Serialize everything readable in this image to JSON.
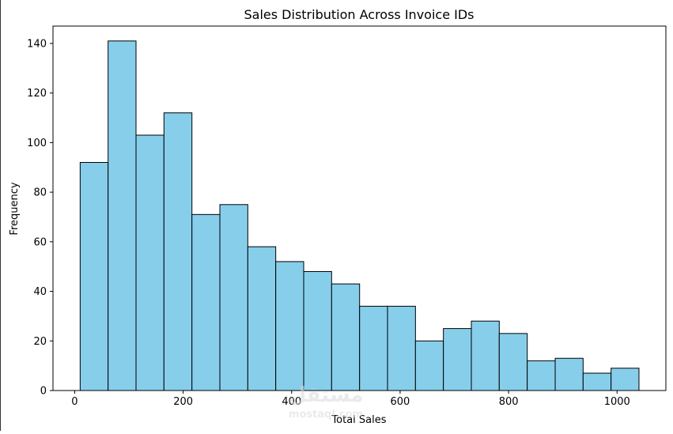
{
  "chart_data": {
    "type": "bar",
    "title": "Sales Distribution Across Invoice IDs",
    "xlabel": "Total Sales",
    "ylabel": "Frequency",
    "xlim": [
      -40,
      1090
    ],
    "ylim": [
      0,
      147
    ],
    "x_ticks": [
      0,
      200,
      400,
      600,
      800,
      1000
    ],
    "y_ticks": [
      0,
      20,
      40,
      60,
      80,
      100,
      120,
      140
    ],
    "grid": false,
    "bar_color": "#87CEEB",
    "edge_color": "#000000",
    "bins": [
      {
        "x0": 10.1,
        "x1": 61.6,
        "value": 92
      },
      {
        "x0": 61.6,
        "x1": 113.1,
        "value": 141
      },
      {
        "x0": 113.1,
        "x1": 164.6,
        "value": 103
      },
      {
        "x0": 164.6,
        "x1": 216.2,
        "value": 112
      },
      {
        "x0": 216.2,
        "x1": 267.7,
        "value": 71
      },
      {
        "x0": 267.7,
        "x1": 319.2,
        "value": 75
      },
      {
        "x0": 319.2,
        "x1": 370.7,
        "value": 58
      },
      {
        "x0": 370.7,
        "x1": 422.2,
        "value": 52
      },
      {
        "x0": 422.2,
        "x1": 473.7,
        "value": 48
      },
      {
        "x0": 473.7,
        "x1": 525.3,
        "value": 43
      },
      {
        "x0": 525.3,
        "x1": 576.8,
        "value": 34
      },
      {
        "x0": 576.8,
        "x1": 628.3,
        "value": 34
      },
      {
        "x0": 628.3,
        "x1": 679.8,
        "value": 20
      },
      {
        "x0": 679.8,
        "x1": 731.3,
        "value": 25
      },
      {
        "x0": 731.3,
        "x1": 782.8,
        "value": 28
      },
      {
        "x0": 782.8,
        "x1": 834.4,
        "value": 23
      },
      {
        "x0": 834.4,
        "x1": 885.9,
        "value": 12
      },
      {
        "x0": 885.9,
        "x1": 937.4,
        "value": 13
      },
      {
        "x0": 937.4,
        "x1": 988.9,
        "value": 7
      },
      {
        "x0": 988.9,
        "x1": 1040.4,
        "value": 9
      }
    ]
  },
  "watermark": {
    "arabic": "مستقل",
    "latin": "mostaql.com"
  }
}
